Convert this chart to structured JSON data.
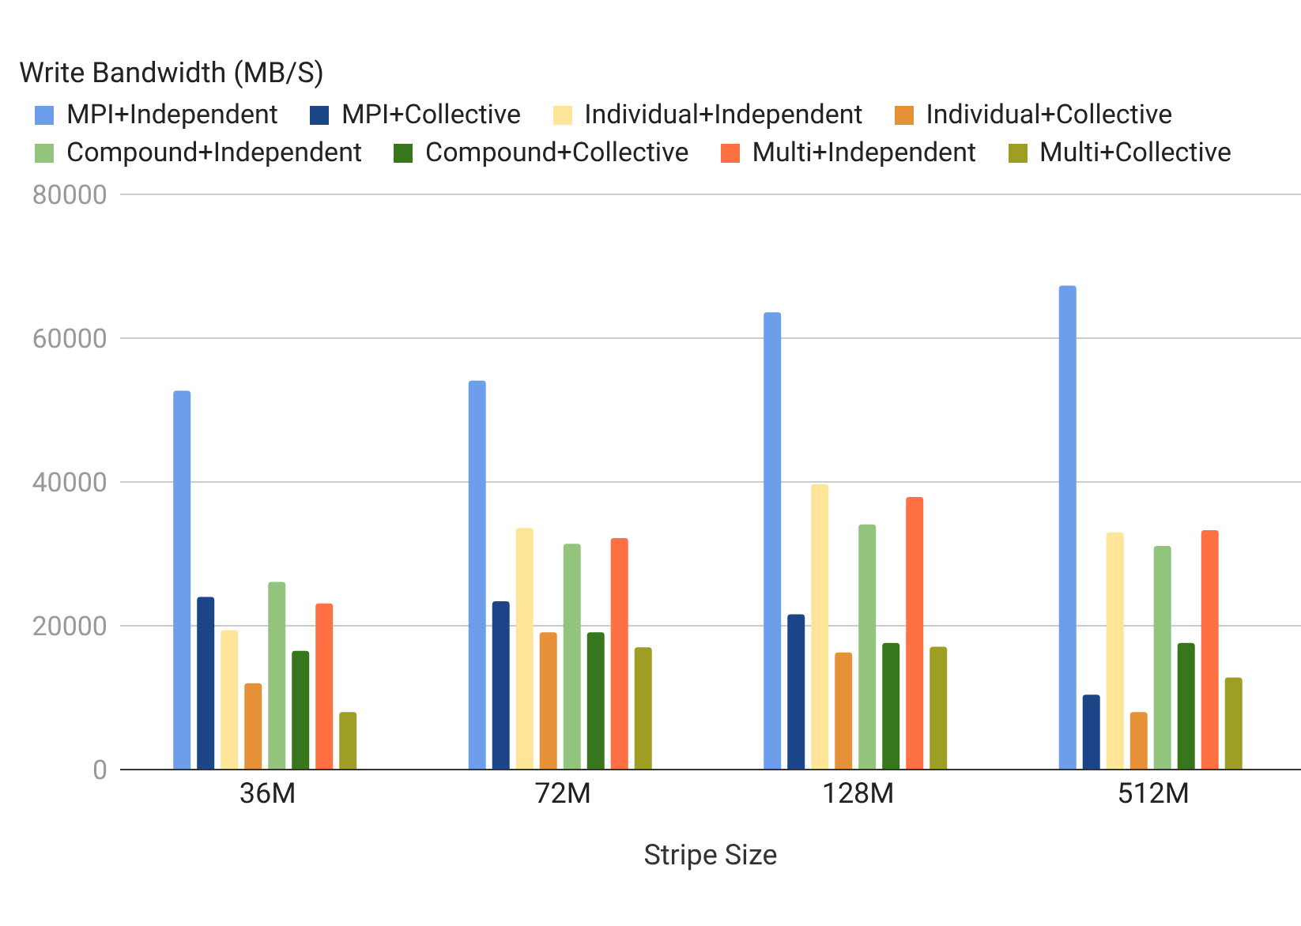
{
  "chart_data": {
    "type": "bar",
    "title": "Write Bandwidth (MB/S)",
    "xlabel": "Stripe Size",
    "categories": [
      "36M",
      "72M",
      "128M",
      "512M"
    ],
    "series": [
      {
        "name": "MPI+Independent",
        "color": "#6d9eeb",
        "values": [
          52700,
          54100,
          63600,
          67300
        ]
      },
      {
        "name": "MPI+Collective",
        "color": "#1c4587",
        "values": [
          24000,
          23400,
          21600,
          10400
        ]
      },
      {
        "name": "Individual+Independent",
        "color": "#ffe599",
        "values": [
          19400,
          33600,
          39700,
          33000
        ]
      },
      {
        "name": "Individual+Collective",
        "color": "#e69138",
        "values": [
          12000,
          19100,
          16300,
          8000
        ]
      },
      {
        "name": "Compound+Independent",
        "color": "#93c47d",
        "values": [
          26100,
          31400,
          34100,
          31100
        ]
      },
      {
        "name": "Compound+Collective",
        "color": "#38761d",
        "values": [
          16500,
          19100,
          17600,
          17600
        ]
      },
      {
        "name": "Multi+Independent",
        "color": "#ff7043",
        "values": [
          23100,
          32200,
          37900,
          33300
        ]
      },
      {
        "name": "Multi+Collective",
        "color": "#9e9e24",
        "values": [
          8000,
          17000,
          17100,
          12800
        ]
      }
    ],
    "ylim": [
      0,
      80000
    ],
    "yticks": [
      0,
      20000,
      40000,
      60000,
      80000
    ],
    "grid": "y",
    "legend": "top"
  }
}
